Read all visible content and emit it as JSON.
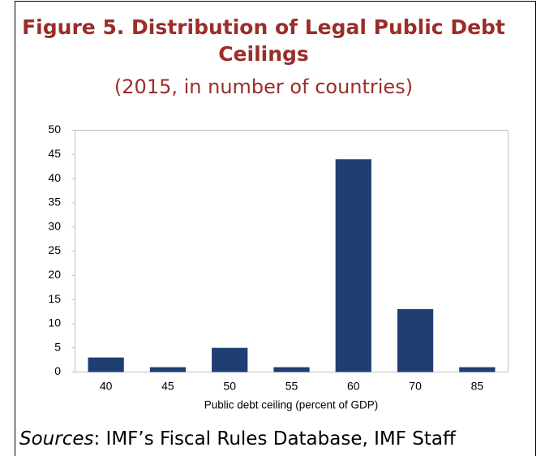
{
  "chart_data": {
    "type": "bar",
    "title_lines": [
      "Figure 5. Distribution of Legal Public Debt",
      "Ceilings"
    ],
    "subtitle": "(2015, in number of countries)",
    "x_label": "Public debt ceiling (percent of GDP)",
    "categories": [
      "40",
      "45",
      "50",
      "55",
      "60",
      "70",
      "85"
    ],
    "values": [
      3,
      1,
      5,
      1,
      44,
      13,
      1
    ],
    "color": "#1f3f73",
    "ylim": [
      0,
      50
    ],
    "yticks": [
      0,
      5,
      10,
      15,
      20,
      25,
      30,
      35,
      40,
      45,
      50
    ],
    "grid": false,
    "source_label": "Sources",
    "source": ": IMF’s Fiscal Rules Database, IMF Staff"
  }
}
